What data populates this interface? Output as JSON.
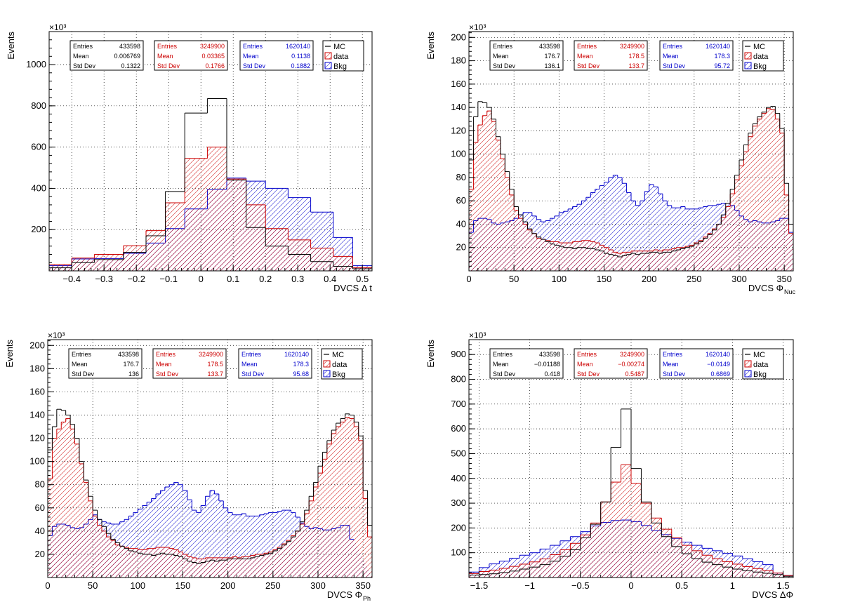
{
  "colors": {
    "mc": "#000000",
    "data": "#cc0000",
    "bkg": "#0000cc"
  },
  "chart_data": [
    {
      "type": "histogram",
      "xlabel": "DVCS   Δ t",
      "ylabel": "Events",
      "exponent": "×10³",
      "xlim": [
        -0.47,
        0.53
      ],
      "ylim": [
        0,
        1160
      ],
      "xticks": [
        -0.4,
        -0.3,
        -0.2,
        -0.1,
        0,
        0.1,
        0.2,
        0.3,
        0.4,
        0.5
      ],
      "yticks": [
        200,
        400,
        600,
        800,
        1000
      ],
      "grid": true,
      "legend_position": "top-right",
      "edges": [
        -0.47,
        -0.4,
        -0.33,
        -0.24,
        -0.17,
        -0.11,
        -0.05,
        0.02,
        0.08,
        0.14,
        0.2,
        0.27,
        0.34,
        0.41,
        0.47,
        0.53
      ],
      "series": [
        {
          "name": "MC",
          "values": [
            15,
            40,
            55,
            90,
            170,
            385,
            765,
            835,
            440,
            210,
            120,
            80,
            45,
            22,
            10
          ]
        },
        {
          "name": "data",
          "values": [
            30,
            62,
            80,
            122,
            195,
            330,
            545,
            600,
            445,
            320,
            205,
            150,
            110,
            70,
            15
          ]
        },
        {
          "name": "Bkg",
          "values": [
            25,
            58,
            60,
            85,
            135,
            205,
            300,
            395,
            450,
            435,
            400,
            355,
            285,
            162,
            25
          ]
        }
      ],
      "stats": [
        {
          "rows": [
            [
              "Entries",
              "433598"
            ],
            [
              "Mean",
              "0.006769"
            ],
            [
              "Std Dev",
              "0.1322"
            ]
          ]
        },
        {
          "rows": [
            [
              "Entries",
              "3249900"
            ],
            [
              "Mean",
              "0.03365"
            ],
            [
              "Std Dev",
              "0.1766"
            ]
          ]
        },
        {
          "rows": [
            [
              "Entries",
              "1620140"
            ],
            [
              "Mean",
              "0.1138"
            ],
            [
              "Std Dev",
              "0.1882"
            ]
          ]
        }
      ]
    },
    {
      "type": "histogram",
      "xlabel": "DVCS   Φ",
      "xlabel_sub": "Nuc",
      "ylabel": "Events",
      "exponent": "×10³",
      "xlim": [
        0,
        360
      ],
      "ylim": [
        0,
        205
      ],
      "xticks": [
        0,
        50,
        100,
        150,
        200,
        250,
        300,
        350
      ],
      "yticks": [
        20,
        40,
        60,
        80,
        100,
        120,
        140,
        160,
        180,
        200
      ],
      "grid": true,
      "legend_position": "top-right",
      "bin_start": 0,
      "bin_width": 5,
      "series": [
        {
          "name": "MC",
          "values": [
            95,
            132,
            145,
            144,
            140,
            130,
            115,
            100,
            85,
            70,
            55,
            48,
            42,
            36,
            32,
            29,
            27,
            25,
            23,
            22,
            21,
            20,
            20,
            19,
            20,
            20,
            19,
            19,
            18,
            17,
            15,
            14,
            13,
            12,
            13,
            14,
            15,
            14,
            15,
            15,
            16,
            16,
            15,
            16,
            16,
            17,
            18,
            19,
            20,
            21,
            23,
            25,
            28,
            31,
            35,
            40,
            48,
            58,
            70,
            82,
            95,
            108,
            118,
            126,
            132,
            136,
            140,
            141,
            135,
            122,
            75,
            40
          ]
        },
        {
          "name": "data",
          "values": [
            70,
            110,
            125,
            133,
            137,
            128,
            112,
            96,
            80,
            65,
            52,
            45,
            40,
            35,
            32,
            28,
            27,
            26,
            25,
            25,
            24,
            24,
            24,
            25,
            25,
            26,
            26,
            25,
            24,
            22,
            20,
            18,
            16,
            15,
            16,
            16,
            17,
            17,
            17,
            17,
            17,
            18,
            17,
            18,
            18,
            19,
            20,
            20,
            21,
            22,
            24,
            26,
            29,
            32,
            36,
            40,
            46,
            55,
            66,
            78,
            90,
            102,
            115,
            124,
            130,
            135,
            139,
            138,
            130,
            118,
            65,
            32
          ]
        },
        {
          "name": "Bkg",
          "values": [
            33,
            43,
            45,
            45,
            44,
            41,
            40,
            41,
            42,
            43,
            45,
            48,
            50,
            50,
            47,
            44,
            42,
            43,
            45,
            47,
            50,
            51,
            53,
            55,
            57,
            60,
            63,
            67,
            70,
            73,
            76,
            80,
            82,
            80,
            75,
            67,
            60,
            56,
            60,
            68,
            74,
            72,
            66,
            60,
            56,
            54,
            54,
            55,
            53,
            53,
            53,
            54,
            55,
            56,
            56,
            57,
            58,
            58,
            56,
            52,
            47,
            44,
            42,
            43,
            42,
            41,
            41,
            42,
            43,
            45,
            45,
            33
          ]
        }
      ],
      "stats": [
        {
          "rows": [
            [
              "Entries",
              "433598"
            ],
            [
              "Mean",
              "176.7"
            ],
            [
              "Std Dev",
              "136.1"
            ]
          ]
        },
        {
          "rows": [
            [
              "Entries",
              "3249900"
            ],
            [
              "Mean",
              "178.5"
            ],
            [
              "Std Dev",
              "133.7"
            ]
          ]
        },
        {
          "rows": [
            [
              "Entries",
              "1620140"
            ],
            [
              "Mean",
              "178.3"
            ],
            [
              "Std Dev",
              "95.72"
            ]
          ]
        }
      ]
    },
    {
      "type": "histogram",
      "xlabel": "DVCS   Φ",
      "xlabel_sub": "Ph",
      "ylabel": "Events",
      "exponent": "×10³",
      "xlim": [
        0,
        360
      ],
      "ylim": [
        0,
        205
      ],
      "xticks": [
        0,
        50,
        100,
        150,
        200,
        250,
        300,
        350
      ],
      "yticks": [
        20,
        40,
        60,
        80,
        100,
        120,
        140,
        160,
        180,
        200
      ],
      "grid": true,
      "legend_position": "top-right",
      "bin_start": 0,
      "bin_width": 5,
      "series": [
        {
          "name": "MC",
          "values": [
            110,
            130,
            145,
            144,
            140,
            132,
            120,
            100,
            84,
            70,
            58,
            50,
            44,
            38,
            33,
            30,
            27,
            25,
            23,
            22,
            21,
            20,
            20,
            19,
            20,
            21,
            20,
            20,
            19,
            18,
            16,
            14,
            13,
            12,
            13,
            14,
            15,
            14,
            15,
            15,
            16,
            16,
            16,
            16,
            16,
            17,
            18,
            19,
            20,
            21,
            23,
            25,
            28,
            31,
            35,
            40,
            48,
            58,
            70,
            82,
            96,
            108,
            118,
            127,
            133,
            137,
            141,
            140,
            134,
            122,
            75,
            45
          ]
        },
        {
          "name": "data",
          "values": [
            85,
            120,
            128,
            134,
            137,
            128,
            115,
            98,
            82,
            66,
            53,
            45,
            40,
            35,
            32,
            28,
            27,
            26,
            25,
            25,
            24,
            24,
            25,
            25,
            26,
            26,
            26,
            25,
            24,
            22,
            20,
            18,
            17,
            16,
            16,
            17,
            17,
            17,
            17,
            17,
            17,
            18,
            17,
            18,
            18,
            19,
            20,
            20,
            21,
            22,
            24,
            26,
            29,
            32,
            36,
            40,
            46,
            55,
            66,
            78,
            90,
            102,
            115,
            124,
            130,
            134,
            138,
            137,
            130,
            118,
            68,
            35
          ]
        },
        {
          "name": "Bkg",
          "values": [
            36,
            44,
            46,
            46,
            45,
            43,
            42,
            43,
            46,
            50,
            54,
            50,
            48,
            47,
            46,
            46,
            48,
            50,
            53,
            56,
            59,
            62,
            65,
            68,
            72,
            75,
            78,
            80,
            82,
            80,
            75,
            67,
            58,
            56,
            62,
            70,
            75,
            72,
            66,
            60,
            56,
            54,
            54,
            55,
            53,
            53,
            53,
            54,
            55,
            56,
            56,
            57,
            58,
            58,
            56,
            52,
            47,
            44,
            42,
            43,
            42,
            41,
            41,
            42,
            43,
            45,
            45,
            33
          ]
        }
      ],
      "stats": [
        {
          "rows": [
            [
              "Entries",
              "433598"
            ],
            [
              "Mean",
              "176.7"
            ],
            [
              "Std Dev",
              "136"
            ]
          ]
        },
        {
          "rows": [
            [
              "Entries",
              "3249900"
            ],
            [
              "Mean",
              "178.5"
            ],
            [
              "Std Dev",
              "133.7"
            ]
          ]
        },
        {
          "rows": [
            [
              "Entries",
              "1620140"
            ],
            [
              "Mean",
              "178.3"
            ],
            [
              "Std Dev",
              "95.68"
            ]
          ]
        }
      ]
    },
    {
      "type": "histogram",
      "xlabel": "DVCS   ΔΦ",
      "ylabel": "Events",
      "exponent": "×10³",
      "xlim": [
        -1.6,
        1.6
      ],
      "ylim": [
        0,
        960
      ],
      "xticks": [
        -1.5,
        -1,
        -0.5,
        0,
        0.5,
        1,
        1.5
      ],
      "yticks": [
        100,
        200,
        300,
        400,
        500,
        600,
        700,
        800,
        900
      ],
      "grid": true,
      "legend_position": "top-right",
      "bin_start": -1.6,
      "bin_width": 0.1,
      "series": [
        {
          "name": "MC",
          "values": [
            10,
            12,
            15,
            20,
            26,
            34,
            42,
            52,
            66,
            86,
            112,
            160,
            215,
            305,
            525,
            680,
            440,
            305,
            220,
            165,
            125,
            96,
            76,
            62,
            52,
            42,
            34,
            27,
            22,
            17,
            12,
            5
          ]
        },
        {
          "name": "data",
          "values": [
            16,
            24,
            30,
            37,
            45,
            54,
            63,
            75,
            92,
            112,
            138,
            172,
            220,
            305,
            385,
            455,
            380,
            300,
            240,
            195,
            160,
            130,
            108,
            90,
            76,
            64,
            54,
            44,
            36,
            28,
            18,
            8
          ]
        },
        {
          "name": "Bkg",
          "values": [
            22,
            40,
            55,
            66,
            78,
            90,
            100,
            115,
            130,
            148,
            165,
            185,
            208,
            222,
            230,
            232,
            225,
            210,
            190,
            173,
            158,
            143,
            130,
            118,
            108,
            98,
            87,
            76,
            64,
            52,
            18,
            8
          ]
        }
      ],
      "stats": [
        {
          "rows": [
            [
              "Entries",
              "433598"
            ],
            [
              "Mean",
              "−0.01188"
            ],
            [
              "Std Dev",
              "0.418"
            ]
          ]
        },
        {
          "rows": [
            [
              "Entries",
              "3249900"
            ],
            [
              "Mean",
              "−0.00274"
            ],
            [
              "Std Dev",
              "0.5487"
            ]
          ]
        },
        {
          "rows": [
            [
              "Entries",
              "1620140"
            ],
            [
              "Mean",
              "−0.0149"
            ],
            [
              "Std Dev",
              "0.6869"
            ]
          ]
        }
      ]
    }
  ]
}
